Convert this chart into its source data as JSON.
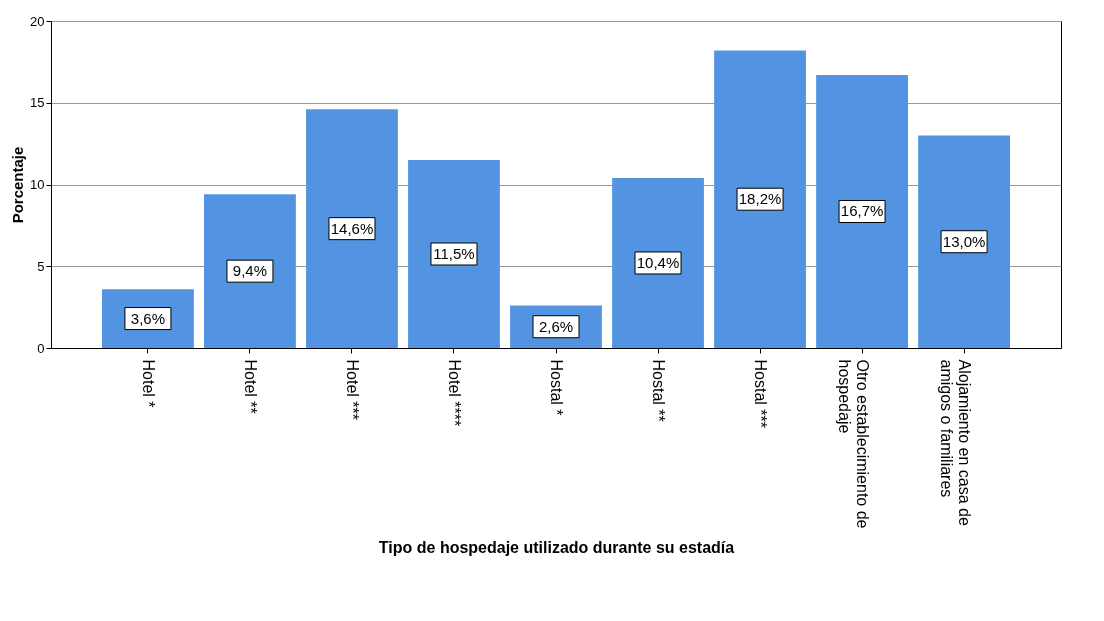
{
  "chart_data": {
    "type": "bar",
    "xlabel": "Tipo de hospedaje utilizado durante su estadía",
    "ylabel": "Porcentaje",
    "categories": [
      "Hotel *",
      "Hotel **",
      "Hotel ***",
      "Hotel ****",
      "Hostal *",
      "Hostal **",
      "Hostal ***",
      "Otro establecimiento de hospedaje",
      "Alojamiento en casa de amigos o familiares"
    ],
    "values": [
      3.6,
      9.4,
      14.6,
      11.5,
      2.6,
      10.4,
      18.2,
      16.7,
      13.0
    ],
    "value_labels": [
      "3,6%",
      "9,4%",
      "14,6%",
      "11,5%",
      "2,6%",
      "10,4%",
      "18,2%",
      "16,7%",
      "13,0%"
    ],
    "color": "#5294e2",
    "ylim": [
      0,
      20
    ],
    "yticks": [
      0,
      5,
      10,
      15,
      20
    ],
    "grid": "y"
  }
}
